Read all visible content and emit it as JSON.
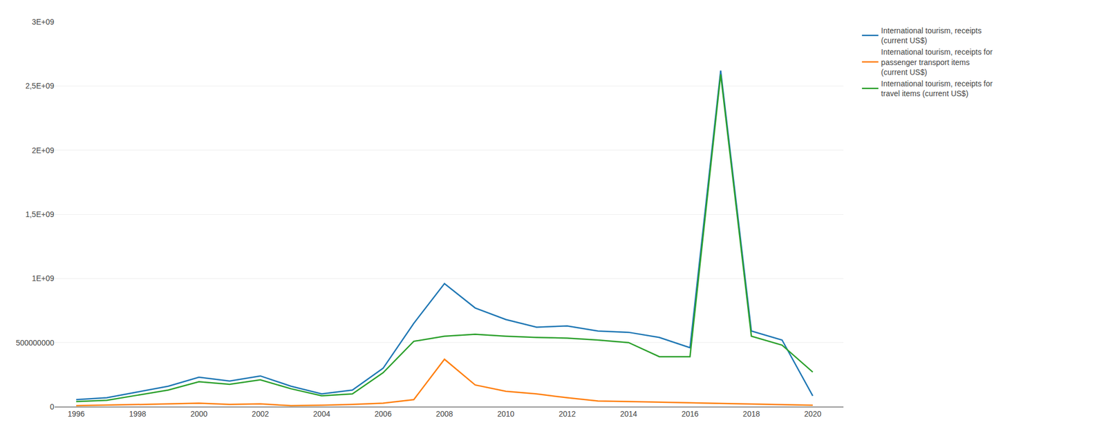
{
  "chart_data": {
    "type": "line",
    "x": [
      1996,
      1997,
      1998,
      1999,
      2000,
      2001,
      2002,
      2003,
      2004,
      2005,
      2006,
      2007,
      2008,
      2009,
      2010,
      2011,
      2012,
      2013,
      2014,
      2015,
      2016,
      2017,
      2018,
      2019,
      2020
    ],
    "series": [
      {
        "name": "International tourism, receipts\n(current US$)",
        "values": [
          55000000,
          70000000,
          115000000,
          160000000,
          230000000,
          200000000,
          240000000,
          160000000,
          100000000,
          130000000,
          300000000,
          650000000,
          960000000,
          770000000,
          680000000,
          620000000,
          630000000,
          590000000,
          580000000,
          540000000,
          460000000,
          2620000000,
          590000000,
          520000000,
          85000000
        ]
      },
      {
        "name": "International tourism, receipts for\npassenger transport items\n(current US$)",
        "values": [
          8000000,
          12000000,
          18000000,
          22000000,
          28000000,
          18000000,
          22000000,
          8000000,
          12000000,
          18000000,
          28000000,
          55000000,
          370000000,
          170000000,
          120000000,
          100000000,
          70000000,
          45000000,
          40000000,
          35000000,
          30000000,
          28000000,
          22000000,
          18000000,
          12000000
        ]
      },
      {
        "name": "International tourism, receipts for\ntravel items (current US$)",
        "values": [
          40000000,
          50000000,
          90000000,
          130000000,
          195000000,
          175000000,
          210000000,
          140000000,
          85000000,
          100000000,
          265000000,
          510000000,
          550000000,
          565000000,
          550000000,
          540000000,
          535000000,
          520000000,
          500000000,
          390000000,
          390000000,
          2590000000,
          550000000,
          480000000,
          270000000
        ]
      }
    ],
    "xlim": [
      1995.3,
      2021.0
    ],
    "xticks": [
      1996,
      1998,
      2000,
      2002,
      2004,
      2006,
      2008,
      2010,
      2012,
      2014,
      2016,
      2018,
      2020
    ],
    "ylim": [
      0,
      3000000000
    ],
    "yticks": [
      0,
      500000000,
      {
        "value": 1000000000,
        "label": "1E+09"
      },
      {
        "value": 1500000000,
        "label": "1,5E+09"
      },
      {
        "value": 2000000000,
        "label": "2E+09"
      },
      {
        "value": 2500000000,
        "label": "2,5E+09"
      },
      {
        "value": 3000000000,
        "label": "3E+09"
      }
    ],
    "grid": "y",
    "legend": "right"
  }
}
